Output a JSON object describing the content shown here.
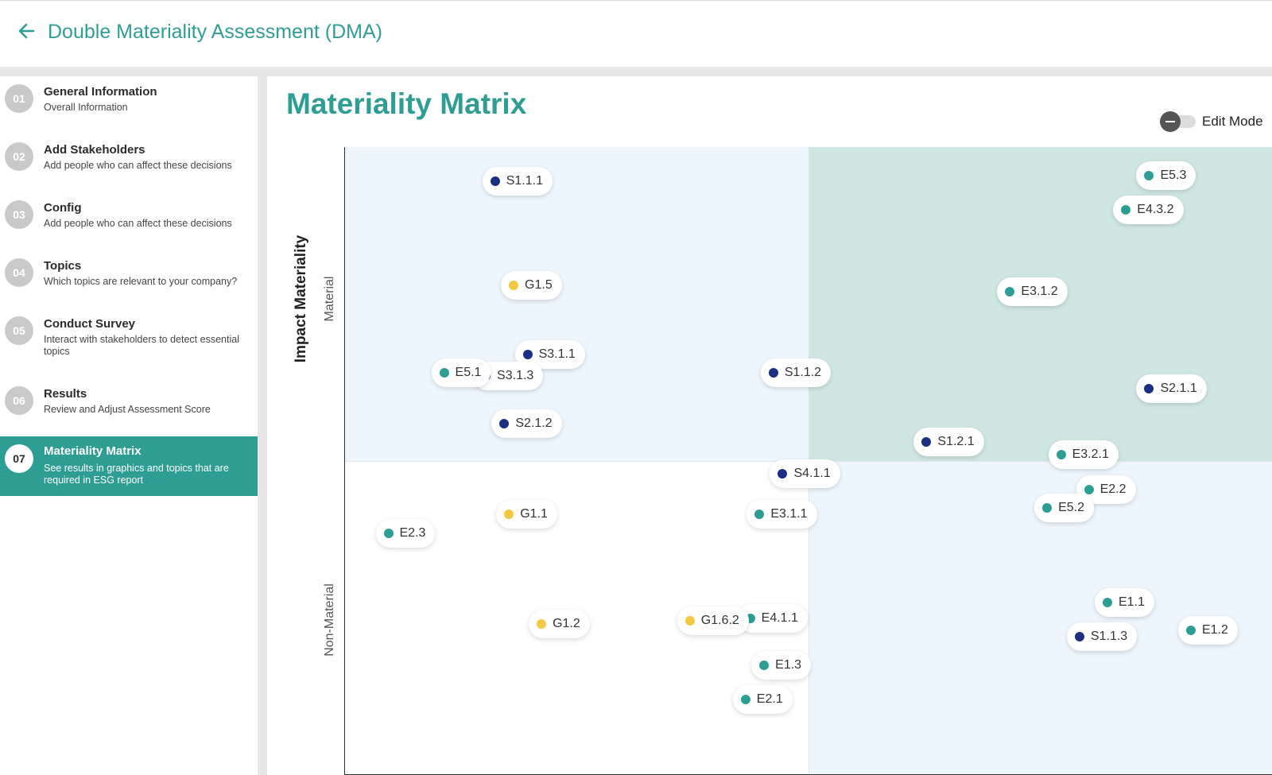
{
  "header": {
    "title": "Double Materiality Assessment (DMA)"
  },
  "sidebar": {
    "steps": [
      {
        "num": "01",
        "label": "General Information",
        "sub": "Overall Information"
      },
      {
        "num": "02",
        "label": "Add Stakeholders",
        "sub": "Add people who can affect these decisions"
      },
      {
        "num": "03",
        "label": "Config",
        "sub": "Add people who can affect these decisions"
      },
      {
        "num": "04",
        "label": "Topics",
        "sub": "Which topics are relevant to your company?"
      },
      {
        "num": "05",
        "label": "Conduct Survey",
        "sub": "Interact with stakeholders to detect essential topics"
      },
      {
        "num": "06",
        "label": "Results",
        "sub": "Review and Adjust Assessment Score"
      },
      {
        "num": "07",
        "label": "Materiality Matrix",
        "sub": "See results in graphics and topics that are required in ESG report"
      }
    ],
    "active_index": 6
  },
  "main": {
    "title": "Materiality Matrix",
    "edit_mode_label": "Edit Mode",
    "edit_mode_on": false
  },
  "colors": {
    "accent": "#2e9e94",
    "environment": "#2e9e94",
    "social": "#1b2f80",
    "governance": "#f5c842"
  },
  "chart_data": {
    "type": "scatter",
    "ylabel": "Impact Materiality",
    "y_band_labels": {
      "upper": "Material",
      "lower": "Non-Material"
    },
    "xlim": [
      0,
      100
    ],
    "ylim": [
      0,
      100
    ],
    "threshold": {
      "x": 50,
      "y": 50
    },
    "points": [
      {
        "label": "S1.1.1",
        "category": "social",
        "x": 16,
        "y": 94.5
      },
      {
        "label": "E5.3",
        "category": "environment",
        "x": 86.5,
        "y": 95.5
      },
      {
        "label": "E4.3.2",
        "category": "environment",
        "x": 84,
        "y": 90
      },
      {
        "label": "G1.5",
        "category": "governance",
        "x": 18,
        "y": 78
      },
      {
        "label": "E3.1.2",
        "category": "environment",
        "x": 71.5,
        "y": 77
      },
      {
        "label": "S3.1.1",
        "category": "social",
        "x": 19.5,
        "y": 67
      },
      {
        "label": "S3.1.3",
        "category": "social",
        "x": 15,
        "y": 63.5
      },
      {
        "label": "E5.1",
        "category": "environment",
        "x": 10.5,
        "y": 64
      },
      {
        "label": "S1.1.2",
        "category": "social",
        "x": 46,
        "y": 64
      },
      {
        "label": "S2.1.1",
        "category": "social",
        "x": 86.5,
        "y": 61.5
      },
      {
        "label": "S2.1.2",
        "category": "social",
        "x": 17,
        "y": 56
      },
      {
        "label": "S1.2.1",
        "category": "social",
        "x": 62.5,
        "y": 53
      },
      {
        "label": "E3.2.1",
        "category": "environment",
        "x": 77,
        "y": 51
      },
      {
        "label": "S4.1.1",
        "category": "social",
        "x": 47,
        "y": 48
      },
      {
        "label": "E2.2",
        "category": "environment",
        "x": 80,
        "y": 45.5
      },
      {
        "label": "E5.2",
        "category": "environment",
        "x": 75.5,
        "y": 42.5
      },
      {
        "label": "G1.1",
        "category": "governance",
        "x": 17.5,
        "y": 41.5
      },
      {
        "label": "E3.1.1",
        "category": "environment",
        "x": 44.5,
        "y": 41.5
      },
      {
        "label": "E2.3",
        "category": "environment",
        "x": 4.5,
        "y": 38.5
      },
      {
        "label": "E1.1",
        "category": "environment",
        "x": 82,
        "y": 27.5
      },
      {
        "label": "E4.1.1",
        "category": "environment",
        "x": 43.5,
        "y": 25
      },
      {
        "label": "G1.2",
        "category": "governance",
        "x": 21,
        "y": 24
      },
      {
        "label": "G1.6.2",
        "category": "governance",
        "x": 37,
        "y": 24.5
      },
      {
        "label": "E1.2",
        "category": "environment",
        "x": 91,
        "y": 23
      },
      {
        "label": "S1.1.3",
        "category": "social",
        "x": 79,
        "y": 22
      },
      {
        "label": "E1.3",
        "category": "environment",
        "x": 45,
        "y": 17.5
      },
      {
        "label": "E2.1",
        "category": "environment",
        "x": 43,
        "y": 12
      }
    ]
  }
}
